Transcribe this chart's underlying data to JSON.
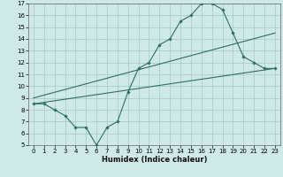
{
  "xlabel": "Humidex (Indice chaleur)",
  "ylabel": "",
  "background_color": "#cfe8e8",
  "grid_color": "#a0c8c8",
  "line_color": "#2d6e63",
  "xlim": [
    -0.5,
    23.5
  ],
  "ylim": [
    5,
    17
  ],
  "xticks": [
    0,
    1,
    2,
    3,
    4,
    5,
    6,
    7,
    8,
    9,
    10,
    11,
    12,
    13,
    14,
    15,
    16,
    17,
    18,
    19,
    20,
    21,
    22,
    23
  ],
  "yticks": [
    5,
    6,
    7,
    8,
    9,
    10,
    11,
    12,
    13,
    14,
    15,
    16,
    17
  ],
  "line1_x": [
    0,
    1,
    2,
    3,
    4,
    5,
    6,
    7,
    8,
    9,
    10,
    11,
    12,
    13,
    14,
    15,
    16,
    17,
    18,
    19,
    20,
    21,
    22,
    23
  ],
  "line1_y": [
    8.5,
    8.5,
    8.0,
    7.5,
    6.5,
    6.5,
    5.0,
    6.5,
    7.0,
    9.5,
    11.5,
    12.0,
    13.5,
    14.0,
    15.5,
    16.0,
    17.0,
    17.0,
    16.5,
    14.5,
    12.5,
    12.0,
    11.5,
    11.5
  ],
  "line2_x": [
    0,
    23
  ],
  "line2_y": [
    8.5,
    11.5
  ],
  "line3_x": [
    0,
    23
  ],
  "line3_y": [
    9.0,
    14.5
  ],
  "xlabel_fontsize": 6,
  "tick_fontsize": 5
}
